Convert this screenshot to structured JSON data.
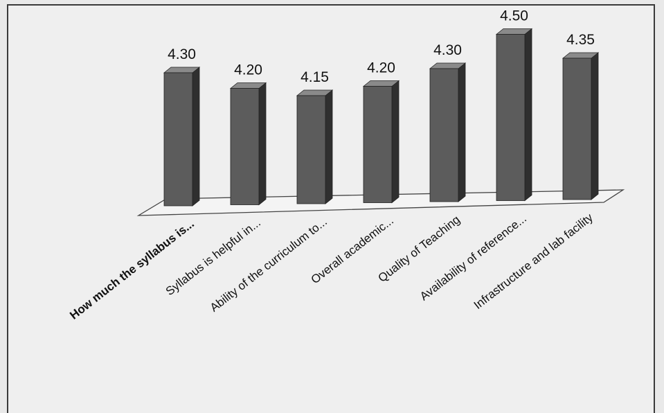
{
  "chart_data": {
    "type": "bar",
    "categories": [
      "How much the syllabus is...",
      "Syllabus is helpful in...",
      "Ability of the curriculum to...",
      "Overall academic...",
      "Quality of Teaching",
      "Availability of reference...",
      "Infrastructure and lab facility"
    ],
    "values": [
      4.3,
      4.2,
      4.15,
      4.2,
      4.3,
      4.5,
      4.35
    ],
    "data_labels": [
      "4.30",
      "4.20",
      "4.15",
      "4.20",
      "4.30",
      "4.50",
      "4.35"
    ],
    "title": "",
    "xlabel": "",
    "ylabel": "",
    "ylim": [
      3.5,
      4.5
    ],
    "grid": false,
    "legend": "none",
    "style": "3d-column",
    "colors": {
      "bar_front": "#5c5c5c",
      "bar_side": "#2f2f2f",
      "bar_top": "#8a8a8a",
      "floor": "#f4f4f4",
      "frame": "#3a3a3a"
    }
  }
}
